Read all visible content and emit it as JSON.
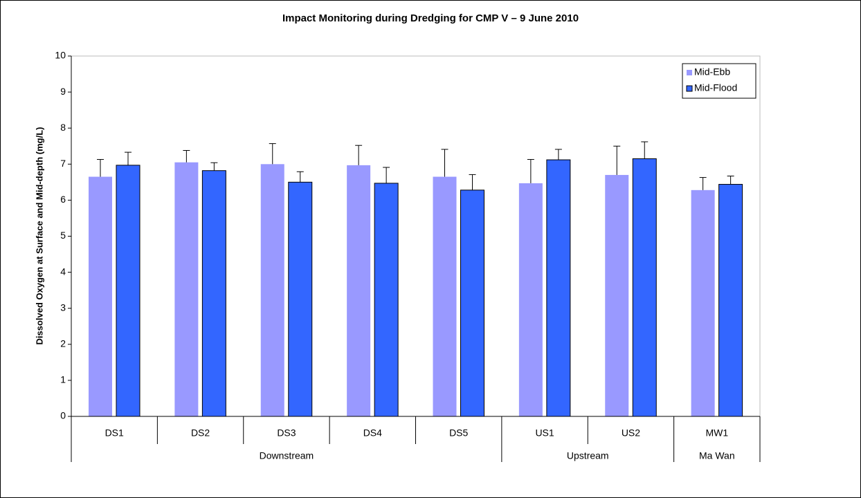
{
  "chart_data": {
    "type": "bar",
    "title": "Impact Monitoring during Dredging for CMP V – 9 June 2010",
    "y_label": "Dissolved Oxygen at Surface and Mid-depth (mg/L)",
    "groups": [
      {
        "name": "Downstream",
        "categories": [
          "DS1",
          "DS2",
          "DS3",
          "DS4",
          "DS5"
        ]
      },
      {
        "name": "Upstream",
        "categories": [
          "US1",
          "US2"
        ]
      },
      {
        "name": "Ma Wan",
        "categories": [
          "MW1"
        ]
      }
    ],
    "series": [
      {
        "name": "Mid-Ebb",
        "color": "#9999ff",
        "values": [
          6.65,
          7.05,
          7.0,
          6.97,
          6.65,
          6.47,
          6.7,
          6.28
        ],
        "errors": [
          0.48,
          0.33,
          0.57,
          0.55,
          0.76,
          0.66,
          0.8,
          0.35
        ]
      },
      {
        "name": "Mid-Flood",
        "color": "#3366ff",
        "values": [
          6.97,
          6.82,
          6.5,
          6.47,
          6.28,
          7.12,
          7.15,
          6.44
        ],
        "errors": [
          0.36,
          0.22,
          0.29,
          0.44,
          0.43,
          0.29,
          0.47,
          0.23
        ]
      }
    ],
    "ylim": [
      0,
      10
    ],
    "yticks": [
      0,
      1,
      2,
      3,
      4,
      5,
      6,
      7,
      8,
      9,
      10
    ],
    "legend": "upper right"
  }
}
